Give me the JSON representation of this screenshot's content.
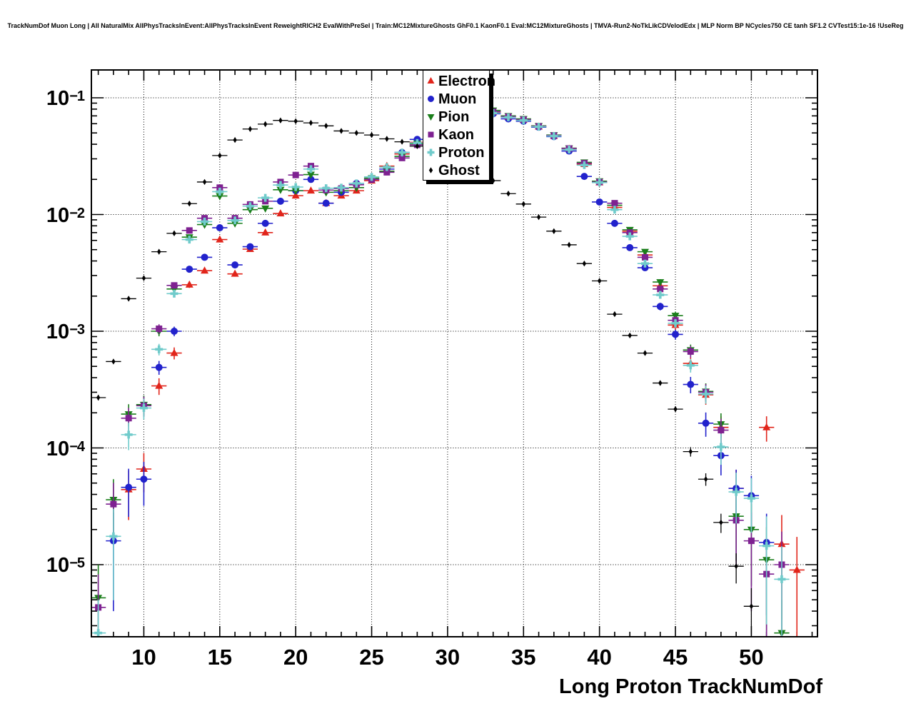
{
  "title": "TrackNumDof Muon Long | All NaturalMix AllPhysTracksInEvent:AllPhysTracksInEvent ReweightRICH2 EvalWithPreSel | Train:MC12MixtureGhosts GhF0.1 KaonF0.1 Eval:MC12MixtureGhosts | TMVA-Run2-NoTkLikCDVelodEdx | MLP Norm BP NCycles750 CE tanh SF1.2 CVTest15:1e-16 !UseReg",
  "chart_data": {
    "type": "scatter",
    "title": "TrackNumDof Muon Long | All NaturalMix AllPhysTracksInEvent:AllPhysTracksInEvent ReweightRICH2 EvalWithPreSel | Train:MC12MixtureGhosts GhF0.1 KaonF0.1 Eval:MC12MixtureGhosts | TMVA-Run2-NoTkLikCDVelodEdx | MLP Norm BP NCycles750 CE tanh SF1.2 CVTest15:1e-16 !UseReg",
    "xlabel": "Long Proton TrackNumDof",
    "ylabel": "",
    "x_range": [
      6.5,
      54.4
    ],
    "y_range": [
      2.4e-06,
      0.176
    ],
    "y_scale": "log",
    "grid": "dotted",
    "xticks": [
      10,
      15,
      20,
      25,
      30,
      35,
      40,
      45,
      50
    ],
    "ytick_exponents": [
      -1,
      -2,
      -3,
      -4,
      -5
    ],
    "legend_position": "top-center",
    "bin_half_width": 0.5,
    "series": [
      {
        "name": "Electron",
        "color": "#e1251b",
        "marker": "triangle-up",
        "err_k": 0.003,
        "points": [
          [
            9,
            4.4e-05
          ],
          [
            10,
            6.6e-05
          ],
          [
            11,
            0.00034
          ],
          [
            12,
            0.00065
          ],
          [
            13,
            0.0025
          ],
          [
            14,
            0.0033
          ],
          [
            15,
            0.0061
          ],
          [
            16,
            0.0031
          ],
          [
            17,
            0.00505
          ],
          [
            18,
            0.007
          ],
          [
            19,
            0.0102
          ],
          [
            20,
            0.0145
          ],
          [
            21,
            0.016
          ],
          [
            22,
            0.0125
          ],
          [
            23,
            0.0145
          ],
          [
            24,
            0.016
          ],
          [
            25,
            0.0195
          ],
          [
            26,
            0.026
          ],
          [
            27,
            0.033
          ],
          [
            28,
            0.0415
          ],
          [
            29,
            0.049
          ],
          [
            30,
            0.058
          ],
          [
            31,
            0.066
          ],
          [
            32,
            0.072
          ],
          [
            33,
            0.075
          ],
          [
            34,
            0.0685
          ],
          [
            35,
            0.0645
          ],
          [
            36,
            0.0565
          ],
          [
            37,
            0.047
          ],
          [
            38,
            0.0365
          ],
          [
            39,
            0.027
          ],
          [
            40,
            0.0188
          ],
          [
            41,
            0.0115
          ],
          [
            42,
            0.0072
          ],
          [
            43,
            0.0045
          ],
          [
            44,
            0.00245
          ],
          [
            45,
            0.00113
          ],
          [
            46,
            0.00053
          ],
          [
            47,
            0.000285
          ],
          [
            48,
            0.00015
          ],
          [
            49,
            4.5e-05
          ],
          [
            51,
            0.00015
          ],
          [
            52,
            1.5e-05
          ],
          [
            53,
            9e-06
          ]
        ]
      },
      {
        "name": "Muon",
        "color": "#2222cc",
        "marker": "circle",
        "err_k": 0.003,
        "points": [
          [
            8,
            1.6e-05
          ],
          [
            9,
            4.6e-05
          ],
          [
            10,
            5.4e-05
          ],
          [
            11,
            0.00049
          ],
          [
            12,
            0.001
          ],
          [
            13,
            0.0034
          ],
          [
            14,
            0.0043
          ],
          [
            15,
            0.0077
          ],
          [
            16,
            0.0037
          ],
          [
            17,
            0.0053
          ],
          [
            18,
            0.0084
          ],
          [
            19,
            0.013
          ],
          [
            20,
            0.016
          ],
          [
            21,
            0.02
          ],
          [
            22,
            0.0125
          ],
          [
            23,
            0.0155
          ],
          [
            24,
            0.0185
          ],
          [
            25,
            0.02
          ],
          [
            26,
            0.0245
          ],
          [
            27,
            0.034
          ],
          [
            28,
            0.044
          ],
          [
            29,
            0.05
          ],
          [
            30,
            0.059
          ],
          [
            31,
            0.066
          ],
          [
            32,
            0.071
          ],
          [
            33,
            0.073
          ],
          [
            34,
            0.066
          ],
          [
            35,
            0.063
          ],
          [
            36,
            0.056
          ],
          [
            37,
            0.0465
          ],
          [
            38,
            0.035
          ],
          [
            39,
            0.0212
          ],
          [
            40,
            0.0128
          ],
          [
            41,
            0.0084
          ],
          [
            42,
            0.0052
          ],
          [
            43,
            0.0035
          ],
          [
            44,
            0.00163
          ],
          [
            45,
            0.00094
          ],
          [
            46,
            0.00035
          ],
          [
            47,
            0.000163
          ],
          [
            48,
            8.6e-05
          ],
          [
            49,
            4.5e-05
          ],
          [
            50,
            3.9e-05
          ],
          [
            51,
            1.55e-05
          ]
        ]
      },
      {
        "name": "Pion",
        "color": "#1a7e1a",
        "marker": "triangle-down",
        "err_k": 0.003,
        "points": [
          [
            7,
            5.2e-06
          ],
          [
            8,
            3.6e-05
          ],
          [
            9,
            0.000195
          ],
          [
            10,
            0.000235
          ],
          [
            11,
            0.001
          ],
          [
            12,
            0.0023
          ],
          [
            13,
            0.0064
          ],
          [
            14,
            0.0082
          ],
          [
            15,
            0.0144
          ],
          [
            16,
            0.0084
          ],
          [
            17,
            0.011
          ],
          [
            18,
            0.0113
          ],
          [
            19,
            0.0163
          ],
          [
            20,
            0.016
          ],
          [
            21,
            0.022
          ],
          [
            22,
            0.0155
          ],
          [
            23,
            0.016
          ],
          [
            24,
            0.017
          ],
          [
            25,
            0.0205
          ],
          [
            26,
            0.0235
          ],
          [
            27,
            0.0315
          ],
          [
            28,
            0.0405
          ],
          [
            29,
            0.05
          ],
          [
            30,
            0.059
          ],
          [
            31,
            0.067
          ],
          [
            32,
            0.074
          ],
          [
            33,
            0.078
          ],
          [
            34,
            0.07
          ],
          [
            35,
            0.066
          ],
          [
            36,
            0.0575
          ],
          [
            37,
            0.048
          ],
          [
            38,
            0.037
          ],
          [
            39,
            0.028
          ],
          [
            40,
            0.0193
          ],
          [
            41,
            0.012
          ],
          [
            42,
            0.0074
          ],
          [
            43,
            0.0048
          ],
          [
            44,
            0.00264
          ],
          [
            45,
            0.00136
          ],
          [
            46,
            0.00069
          ],
          [
            47,
            0.000305
          ],
          [
            48,
            0.00016
          ],
          [
            49,
            2.6e-05
          ],
          [
            50,
            2e-05
          ],
          [
            51,
            1.1e-05
          ],
          [
            52,
            2.6e-06
          ]
        ]
      },
      {
        "name": "Kaon",
        "color": "#7e2191",
        "marker": "square",
        "err_k": 0.003,
        "points": [
          [
            7,
            4.3e-06
          ],
          [
            8,
            3.3e-05
          ],
          [
            9,
            0.00018
          ],
          [
            10,
            0.00023
          ],
          [
            11,
            0.00105
          ],
          [
            12,
            0.00247
          ],
          [
            13,
            0.0073
          ],
          [
            14,
            0.0093
          ],
          [
            15,
            0.017
          ],
          [
            16,
            0.0093
          ],
          [
            17,
            0.0122
          ],
          [
            18,
            0.013
          ],
          [
            19,
            0.019
          ],
          [
            20,
            0.0218
          ],
          [
            21,
            0.026
          ],
          [
            22,
            0.0162
          ],
          [
            23,
            0.0167
          ],
          [
            24,
            0.018
          ],
          [
            25,
            0.02
          ],
          [
            26,
            0.023
          ],
          [
            27,
            0.0305
          ],
          [
            28,
            0.0395
          ],
          [
            29,
            0.049
          ],
          [
            30,
            0.0585
          ],
          [
            31,
            0.0665
          ],
          [
            32,
            0.072
          ],
          [
            33,
            0.076
          ],
          [
            34,
            0.069
          ],
          [
            35,
            0.065
          ],
          [
            36,
            0.057
          ],
          [
            37,
            0.0475
          ],
          [
            38,
            0.0368
          ],
          [
            39,
            0.0275
          ],
          [
            40,
            0.019
          ],
          [
            41,
            0.0125
          ],
          [
            42,
            0.007
          ],
          [
            43,
            0.0043
          ],
          [
            44,
            0.0023
          ],
          [
            45,
            0.00124
          ],
          [
            46,
            0.00067
          ],
          [
            47,
            0.0003
          ],
          [
            48,
            0.000142
          ],
          [
            49,
            2.4e-05
          ],
          [
            50,
            1.6e-05
          ],
          [
            51,
            8.3e-06
          ],
          [
            52,
            1e-05
          ]
        ]
      },
      {
        "name": "Proton",
        "color": "#70cbcb",
        "marker": "plus",
        "err_k": 0.003,
        "points": [
          [
            7,
            2.6e-06
          ],
          [
            8,
            1.75e-05
          ],
          [
            9,
            0.00013
          ],
          [
            10,
            0.00022
          ],
          [
            11,
            0.0007
          ],
          [
            12,
            0.0021
          ],
          [
            13,
            0.0061
          ],
          [
            14,
            0.0087
          ],
          [
            15,
            0.0157
          ],
          [
            16,
            0.0089
          ],
          [
            17,
            0.0118
          ],
          [
            18,
            0.0139
          ],
          [
            19,
            0.0179
          ],
          [
            20,
            0.0172
          ],
          [
            21,
            0.0245
          ],
          [
            22,
            0.0168
          ],
          [
            23,
            0.017
          ],
          [
            24,
            0.0185
          ],
          [
            25,
            0.021
          ],
          [
            26,
            0.0255
          ],
          [
            27,
            0.034
          ],
          [
            28,
            0.041
          ],
          [
            29,
            0.05
          ],
          [
            30,
            0.059
          ],
          [
            31,
            0.066
          ],
          [
            32,
            0.0715
          ],
          [
            33,
            0.074
          ],
          [
            34,
            0.068
          ],
          [
            35,
            0.064
          ],
          [
            36,
            0.0565
          ],
          [
            37,
            0.047
          ],
          [
            38,
            0.036
          ],
          [
            39,
            0.0265
          ],
          [
            40,
            0.0188
          ],
          [
            41,
            0.011
          ],
          [
            42,
            0.0065
          ],
          [
            43,
            0.0038
          ],
          [
            44,
            0.00205
          ],
          [
            45,
            0.00117
          ],
          [
            46,
            0.00051
          ],
          [
            47,
            0.00029
          ],
          [
            48,
            0.000102
          ],
          [
            49,
            4.2e-05
          ],
          [
            50,
            3.7e-05
          ],
          [
            51,
            1.45e-05
          ],
          [
            52,
            7.5e-06
          ]
        ]
      },
      {
        "name": "Ghost",
        "color": "#000000",
        "marker": "diamond",
        "err_k": 0.0009,
        "points": [
          [
            7,
            0.00027
          ],
          [
            8,
            0.00055
          ],
          [
            9,
            0.0019
          ],
          [
            10,
            0.00285
          ],
          [
            11,
            0.0048
          ],
          [
            12,
            0.0069
          ],
          [
            13,
            0.0124
          ],
          [
            14,
            0.019
          ],
          [
            15,
            0.032
          ],
          [
            16,
            0.0435
          ],
          [
            17,
            0.054
          ],
          [
            18,
            0.0595
          ],
          [
            19,
            0.064
          ],
          [
            20,
            0.063
          ],
          [
            21,
            0.061
          ],
          [
            22,
            0.0575
          ],
          [
            23,
            0.052
          ],
          [
            24,
            0.05
          ],
          [
            25,
            0.048
          ],
          [
            26,
            0.0445
          ],
          [
            27,
            0.042
          ],
          [
            28,
            0.0385
          ],
          [
            29,
            0.0345
          ],
          [
            30,
            0.0305
          ],
          [
            31,
            0.0265
          ],
          [
            32,
            0.023
          ],
          [
            33,
            0.0195
          ],
          [
            34,
            0.0151
          ],
          [
            35,
            0.0123
          ],
          [
            36,
            0.0095
          ],
          [
            37,
            0.0072
          ],
          [
            38,
            0.0055
          ],
          [
            39,
            0.0038
          ],
          [
            40,
            0.0027
          ],
          [
            41,
            0.0014
          ],
          [
            42,
            0.00092
          ],
          [
            43,
            0.00065
          ],
          [
            44,
            0.00036
          ],
          [
            45,
            0.000215
          ],
          [
            46,
            9.3e-05
          ],
          [
            47,
            5.4e-05
          ],
          [
            48,
            2.3e-05
          ],
          [
            49,
            9.7e-06
          ],
          [
            50,
            4.4e-06
          ]
        ]
      }
    ]
  }
}
